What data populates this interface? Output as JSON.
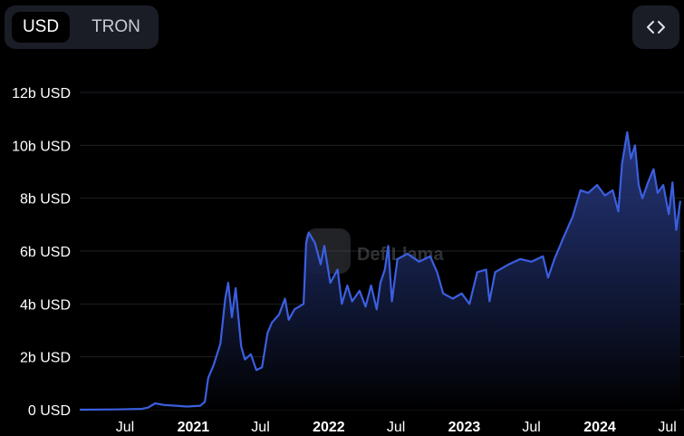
{
  "toggle": {
    "options": [
      {
        "label": "USD",
        "active": true
      },
      {
        "label": "TRON",
        "active": false
      }
    ]
  },
  "embed_icon": "code-brackets-icon",
  "watermark": {
    "text": "DefiLlama",
    "icon": "llama-logo-icon"
  },
  "colors": {
    "background": "#000000",
    "line": "#3b5fe0",
    "fill_top": "#2b3f8f",
    "fill_bottom": "#000000",
    "grid": "#1e2027",
    "text": "#ffffff"
  },
  "chart_data": {
    "type": "area",
    "xlabel": "",
    "ylabel": "",
    "ylim": [
      0,
      12000000000
    ],
    "xlim": [
      "2020-03-01",
      "2024-08-15"
    ],
    "y_ticks": [
      {
        "value": 0,
        "label": "0 USD"
      },
      {
        "value": 2000000000,
        "label": "2b USD"
      },
      {
        "value": 4000000000,
        "label": "4b USD"
      },
      {
        "value": 6000000000,
        "label": "6b USD"
      },
      {
        "value": 8000000000,
        "label": "8b USD"
      },
      {
        "value": 10000000000,
        "label": "10b USD"
      },
      {
        "value": 12000000000,
        "label": "12b USD"
      }
    ],
    "x_ticks": [
      {
        "date": "2020-07-01",
        "label": "Jul",
        "bold": false
      },
      {
        "date": "2021-01-01",
        "label": "2021",
        "bold": true
      },
      {
        "date": "2021-07-01",
        "label": "Jul",
        "bold": false
      },
      {
        "date": "2022-01-01",
        "label": "2022",
        "bold": true
      },
      {
        "date": "2022-07-01",
        "label": "Jul",
        "bold": false
      },
      {
        "date": "2023-01-01",
        "label": "2023",
        "bold": true
      },
      {
        "date": "2023-07-01",
        "label": "Jul",
        "bold": false
      },
      {
        "date": "2024-01-01",
        "label": "2024",
        "bold": true
      },
      {
        "date": "2024-07-01",
        "label": "Jul",
        "bold": false
      }
    ],
    "grid": true,
    "series": [
      {
        "values": [
          [
            "2020-03-01",
            0
          ],
          [
            "2020-06-01",
            10000000
          ],
          [
            "2020-08-15",
            30000000
          ],
          [
            "2020-09-01",
            80000000
          ],
          [
            "2020-09-20",
            240000000
          ],
          [
            "2020-10-15",
            180000000
          ],
          [
            "2020-11-15",
            150000000
          ],
          [
            "2020-12-15",
            120000000
          ],
          [
            "2021-01-20",
            150000000
          ],
          [
            "2021-02-01",
            300000000
          ],
          [
            "2021-02-10",
            1200000000
          ],
          [
            "2021-02-25",
            1700000000
          ],
          [
            "2021-03-15",
            2500000000
          ],
          [
            "2021-03-28",
            4200000000
          ],
          [
            "2021-04-05",
            4800000000
          ],
          [
            "2021-04-15",
            3500000000
          ],
          [
            "2021-04-25",
            4600000000
          ],
          [
            "2021-05-10",
            2400000000
          ],
          [
            "2021-05-20",
            1900000000
          ],
          [
            "2021-06-05",
            2100000000
          ],
          [
            "2021-06-20",
            1500000000
          ],
          [
            "2021-07-05",
            1600000000
          ],
          [
            "2021-07-20",
            2900000000
          ],
          [
            "2021-08-01",
            3300000000
          ],
          [
            "2021-08-20",
            3600000000
          ],
          [
            "2021-09-05",
            4200000000
          ],
          [
            "2021-09-15",
            3400000000
          ],
          [
            "2021-10-01",
            3800000000
          ],
          [
            "2021-10-25",
            4000000000
          ],
          [
            "2021-11-01",
            6300000000
          ],
          [
            "2021-11-08",
            6700000000
          ],
          [
            "2021-11-25",
            6300000000
          ],
          [
            "2021-12-10",
            5500000000
          ],
          [
            "2021-12-20",
            6200000000
          ],
          [
            "2022-01-05",
            4800000000
          ],
          [
            "2022-01-25",
            5300000000
          ],
          [
            "2022-02-05",
            4000000000
          ],
          [
            "2022-02-20",
            4700000000
          ],
          [
            "2022-03-05",
            4100000000
          ],
          [
            "2022-03-25",
            4500000000
          ],
          [
            "2022-04-10",
            3900000000
          ],
          [
            "2022-04-25",
            4700000000
          ],
          [
            "2022-05-10",
            3800000000
          ],
          [
            "2022-05-20",
            4800000000
          ],
          [
            "2022-06-01",
            5300000000
          ],
          [
            "2022-06-10",
            6200000000
          ],
          [
            "2022-06-20",
            4100000000
          ],
          [
            "2022-07-05",
            5700000000
          ],
          [
            "2022-08-01",
            5900000000
          ],
          [
            "2022-09-01",
            5600000000
          ],
          [
            "2022-10-01",
            5800000000
          ],
          [
            "2022-10-20",
            5200000000
          ],
          [
            "2022-11-05",
            4400000000
          ],
          [
            "2022-12-01",
            4200000000
          ],
          [
            "2022-12-25",
            4400000000
          ],
          [
            "2023-01-15",
            4000000000
          ],
          [
            "2023-02-05",
            5200000000
          ],
          [
            "2023-03-01",
            5300000000
          ],
          [
            "2023-03-10",
            4100000000
          ],
          [
            "2023-03-25",
            5200000000
          ],
          [
            "2023-05-01",
            5500000000
          ],
          [
            "2023-06-01",
            5700000000
          ],
          [
            "2023-07-01",
            5600000000
          ],
          [
            "2023-08-01",
            5800000000
          ],
          [
            "2023-08-15",
            5000000000
          ],
          [
            "2023-09-01",
            5700000000
          ],
          [
            "2023-09-25",
            6500000000
          ],
          [
            "2023-10-20",
            7300000000
          ],
          [
            "2023-11-10",
            8300000000
          ],
          [
            "2023-12-01",
            8200000000
          ],
          [
            "2023-12-25",
            8500000000
          ],
          [
            "2024-01-15",
            8100000000
          ],
          [
            "2024-02-05",
            8300000000
          ],
          [
            "2024-02-20",
            7500000000
          ],
          [
            "2024-03-01",
            9300000000
          ],
          [
            "2024-03-15",
            10500000000
          ],
          [
            "2024-03-25",
            9500000000
          ],
          [
            "2024-04-05",
            10000000000
          ],
          [
            "2024-04-15",
            8500000000
          ],
          [
            "2024-04-25",
            8000000000
          ],
          [
            "2024-05-10",
            8600000000
          ],
          [
            "2024-05-25",
            9100000000
          ],
          [
            "2024-06-05",
            8200000000
          ],
          [
            "2024-06-20",
            8500000000
          ],
          [
            "2024-07-05",
            7400000000
          ],
          [
            "2024-07-15",
            8600000000
          ],
          [
            "2024-07-25",
            6800000000
          ],
          [
            "2024-08-05",
            7900000000
          ]
        ]
      }
    ]
  }
}
